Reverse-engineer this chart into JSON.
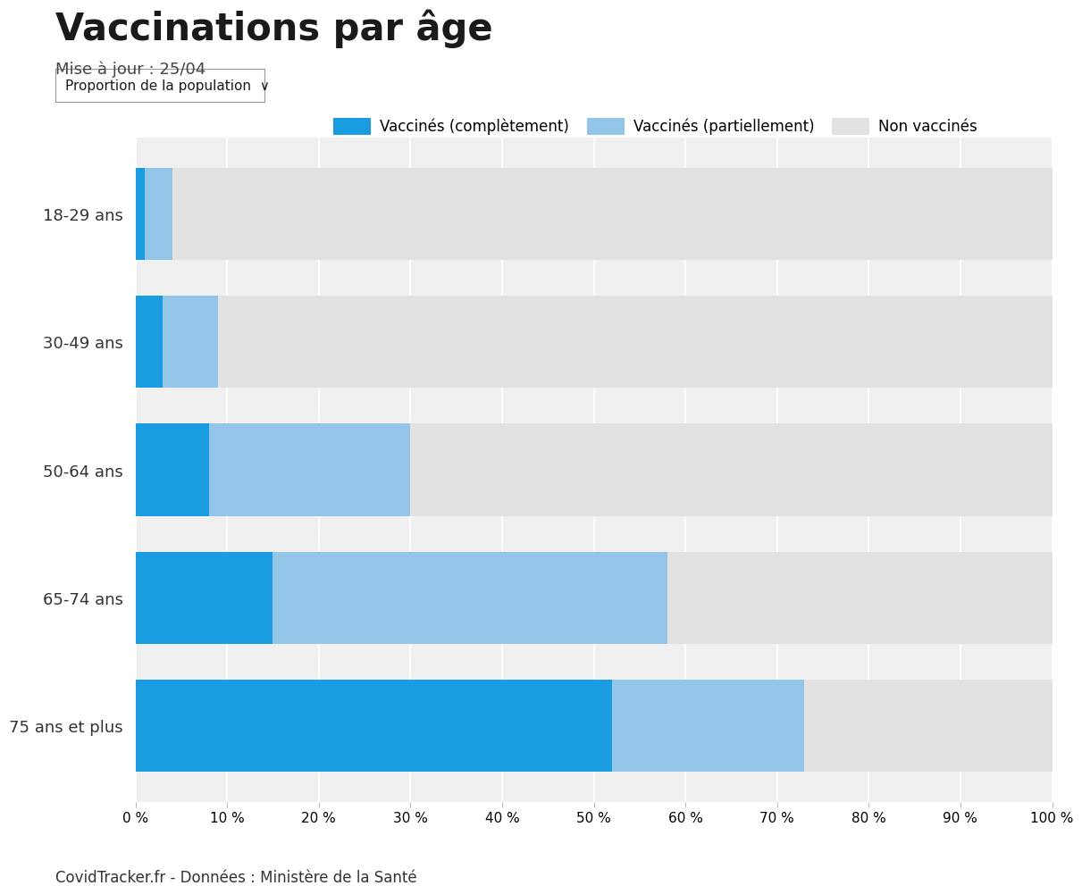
{
  "title": "Vaccinations par âge",
  "subtitle": "Mise à jour : 25/04",
  "dropdown_text": "Proportion de la population  ∨",
  "categories": [
    "18-29 ans",
    "30-49 ans",
    "50-64 ans",
    "65-74 ans",
    "75 ans et plus"
  ],
  "complete": [
    1,
    3,
    8,
    15,
    52
  ],
  "partial": [
    3,
    6,
    22,
    43,
    21
  ],
  "non_vaccinated": [
    96,
    91,
    70,
    42,
    27
  ],
  "color_complete": "#1a9de0",
  "color_partial": "#92c5e8",
  "color_non": "#e2e2e2",
  "legend_labels": [
    "Vaccinés (complètement)",
    "Vaccinés (partiellement)",
    "Non vaccinés"
  ],
  "footer": "CovidTracker.fr - Données : Ministère de la Santé",
  "xlim": [
    0,
    100
  ],
  "background_color": "#ffffff",
  "bar_height": 0.72,
  "figsize": [
    12.0,
    10.12
  ],
  "dpi": 100
}
